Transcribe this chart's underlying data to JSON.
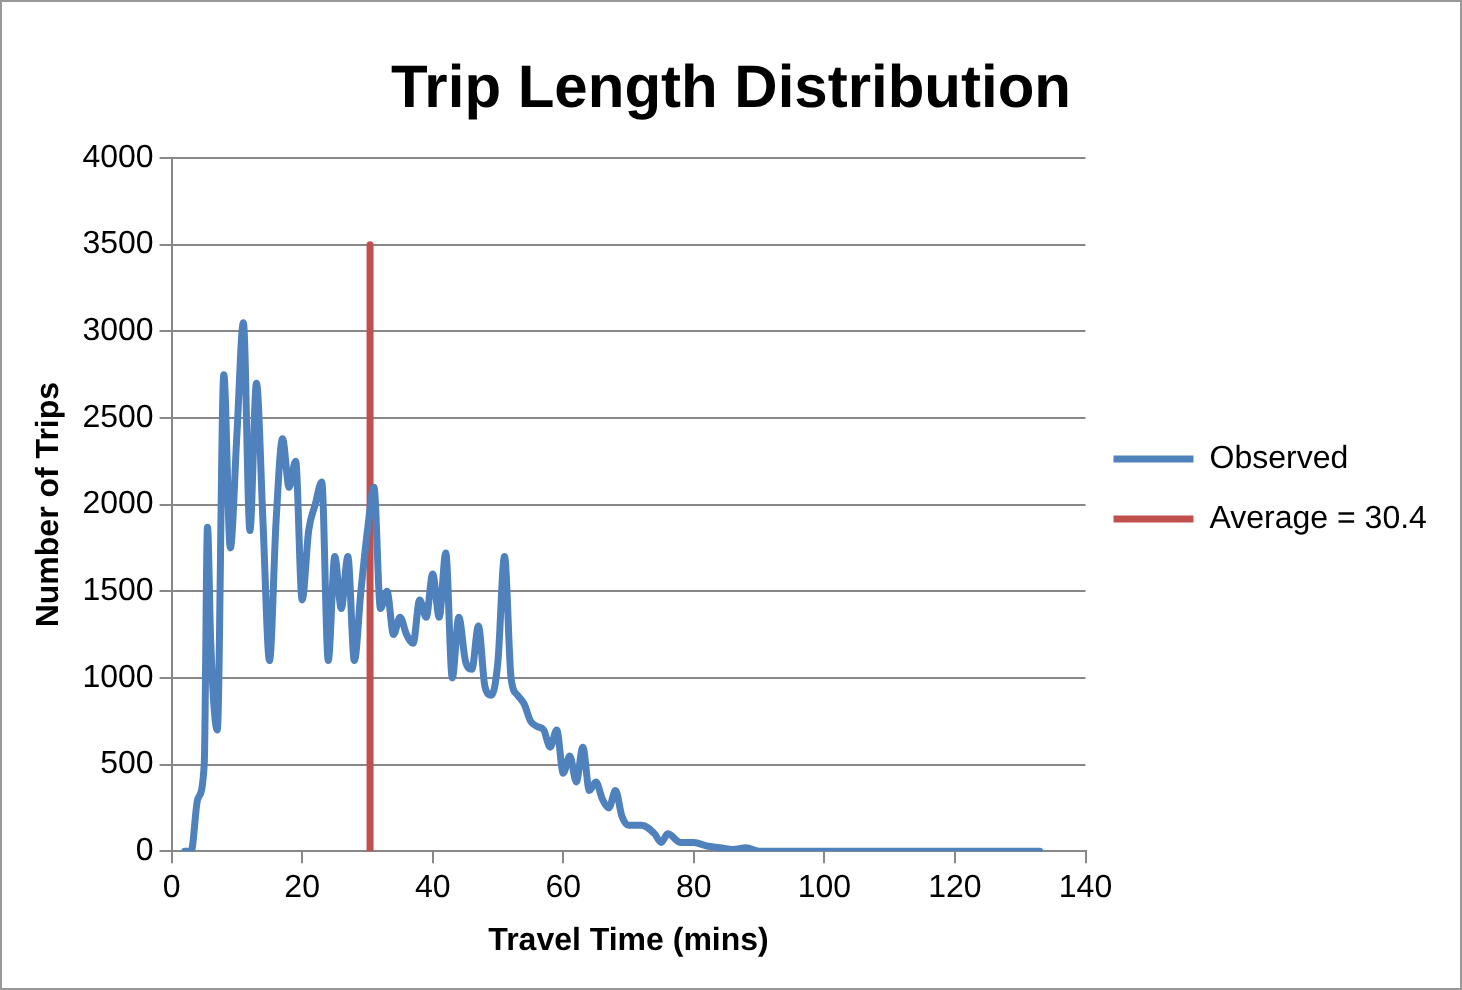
{
  "chart_data": {
    "type": "line",
    "title": "Trip Length Distribution",
    "xlabel": "Travel Time (mins)",
    "ylabel": "Number of Trips",
    "xlim": [
      0,
      140
    ],
    "xticks": [
      0,
      20,
      40,
      60,
      80,
      100,
      120,
      140
    ],
    "ylim": [
      0,
      4000
    ],
    "yticks": [
      0,
      500,
      1000,
      1500,
      2000,
      2500,
      3000,
      3500,
      4000
    ],
    "grid": "y",
    "legend": "right",
    "marker": "none",
    "line_style": "solid",
    "series": [
      {
        "name": "Observed",
        "color": "#4f81bd",
        "x": [
          2,
          3,
          4,
          5,
          5.5,
          6,
          7,
          8,
          9,
          10,
          11,
          12,
          13,
          14,
          15,
          16,
          17,
          18,
          19,
          20,
          21,
          22,
          23,
          24,
          25,
          26,
          27,
          28,
          29,
          30,
          31,
          32,
          33,
          34,
          35,
          36,
          37,
          38,
          39,
          40,
          41,
          42,
          43,
          44,
          45,
          46,
          47,
          48,
          49,
          50,
          51,
          52,
          53,
          54,
          55,
          56,
          57,
          58,
          59,
          60,
          61,
          62,
          63,
          64,
          65,
          66,
          67,
          68,
          69,
          70,
          72,
          74,
          75,
          76,
          78,
          80,
          82,
          84,
          86,
          88,
          90,
          100,
          110,
          120,
          133
        ],
        "values": [
          0,
          0,
          300,
          500,
          1870,
          1200,
          700,
          2750,
          1750,
          2400,
          3050,
          1850,
          2700,
          1900,
          1100,
          1900,
          2380,
          2100,
          2250,
          1450,
          1850,
          2000,
          2130,
          1100,
          1700,
          1400,
          1700,
          1100,
          1500,
          1850,
          2100,
          1400,
          1500,
          1250,
          1350,
          1250,
          1200,
          1450,
          1350,
          1600,
          1350,
          1720,
          1000,
          1350,
          1100,
          1050,
          1300,
          950,
          900,
          1100,
          1700,
          1000,
          900,
          850,
          750,
          720,
          700,
          600,
          700,
          450,
          550,
          400,
          600,
          350,
          400,
          300,
          250,
          350,
          200,
          150,
          150,
          100,
          50,
          100,
          50,
          50,
          30,
          20,
          10,
          20,
          0,
          0,
          0,
          0,
          0
        ]
      },
      {
        "name": "Average = 30.4",
        "color": "#c0504d",
        "x": [
          30.4,
          30.4
        ],
        "values": [
          0,
          3500
        ]
      }
    ]
  }
}
